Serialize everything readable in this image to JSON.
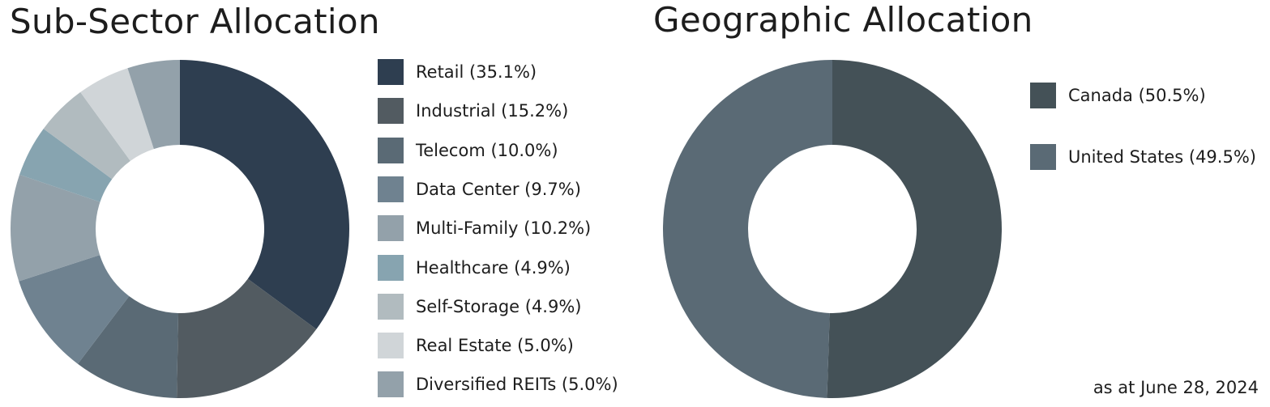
{
  "chart_data": [
    {
      "type": "pie",
      "donut": true,
      "title": "Sub-Sector Allocation",
      "legend_position": "right",
      "series": [
        {
          "name": "Retail",
          "value": 35.1,
          "label": "Retail (35.1%)",
          "color": "#2e3e50"
        },
        {
          "name": "Industrial",
          "value": 15.2,
          "label": "Industrial (15.2%)",
          "color": "#525b61"
        },
        {
          "name": "Telecom",
          "value": 10.0,
          "label": "Telecom (10.0%)",
          "color": "#5a6a75"
        },
        {
          "name": "Data Center",
          "value": 9.7,
          "label": "Data Center (9.7%)",
          "color": "#6f8290"
        },
        {
          "name": "Multi-Family",
          "value": 10.2,
          "label": "Multi-Family (10.2%)",
          "color": "#93a1aa"
        },
        {
          "name": "Healthcare",
          "value": 4.9,
          "label": "Healthcare (4.9%)",
          "color": "#87a4b0"
        },
        {
          "name": "Self-Storage",
          "value": 4.9,
          "label": "Self-Storage (4.9%)",
          "color": "#b1bbbf"
        },
        {
          "name": "Real Estate",
          "value": 5.0,
          "label": "Real Estate (5.0%)",
          "color": "#d0d5d8"
        },
        {
          "name": "Diversified REITs",
          "value": 5.0,
          "label": "Diversified REITs (5.0%)",
          "color": "#93a1aa"
        }
      ]
    },
    {
      "type": "pie",
      "donut": true,
      "title": "Geographic Allocation",
      "legend_position": "right",
      "series": [
        {
          "name": "Canada",
          "value": 50.5,
          "label": "Canada (50.5%)",
          "color": "#445157"
        },
        {
          "name": "United States",
          "value": 49.5,
          "label": "United States (49.5%)",
          "color": "#5a6a75"
        }
      ]
    }
  ],
  "footnote": "as at June 28, 2024"
}
